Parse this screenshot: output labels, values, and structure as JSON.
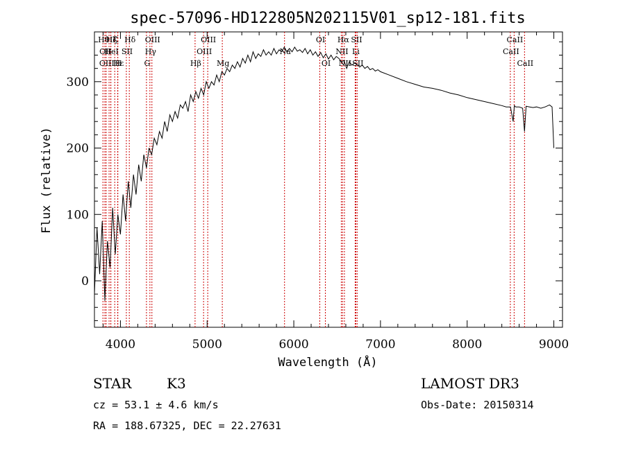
{
  "chart_data": {
    "type": "line",
    "title": "spec-57096-HD122805N202115V01_sp12-181.fits",
    "xlabel": "Wavelength (Å)",
    "ylabel": "Flux (relative)",
    "xlim": [
      3700,
      9100
    ],
    "ylim": [
      -70,
      375
    ],
    "x_ticks": [
      4000,
      5000,
      6000,
      7000,
      8000,
      9000
    ],
    "x_tick_labels": [
      "4000",
      "5000",
      "6000",
      "7000",
      "8000",
      "9000"
    ],
    "y_ticks": [
      0,
      100,
      200,
      300
    ],
    "y_tick_labels": [
      "0",
      "100",
      "200",
      "300"
    ],
    "series": [
      {
        "name": "spectrum",
        "color": "#000000",
        "x": [
          3700,
          3730,
          3760,
          3790,
          3820,
          3850,
          3880,
          3910,
          3940,
          3970,
          4000,
          4030,
          4060,
          4090,
          4120,
          4150,
          4180,
          4210,
          4240,
          4270,
          4300,
          4330,
          4360,
          4390,
          4420,
          4450,
          4480,
          4510,
          4540,
          4570,
          4600,
          4630,
          4660,
          4690,
          4720,
          4750,
          4780,
          4810,
          4840,
          4870,
          4900,
          4930,
          4960,
          4990,
          5020,
          5050,
          5080,
          5110,
          5140,
          5170,
          5200,
          5230,
          5260,
          5290,
          5320,
          5350,
          5380,
          5410,
          5440,
          5470,
          5500,
          5530,
          5560,
          5590,
          5620,
          5650,
          5680,
          5710,
          5740,
          5770,
          5800,
          5830,
          5860,
          5890,
          5920,
          5950,
          5980,
          6010,
          6040,
          6070,
          6100,
          6130,
          6160,
          6190,
          6220,
          6250,
          6280,
          6310,
          6340,
          6370,
          6400,
          6430,
          6460,
          6490,
          6520,
          6550,
          6580,
          6610,
          6640,
          6670,
          6700,
          6730,
          6760,
          6790,
          6820,
          6850,
          6880,
          6910,
          6940,
          6970,
          7000,
          7100,
          7200,
          7300,
          7400,
          7500,
          7600,
          7700,
          7800,
          7900,
          8000,
          8100,
          8200,
          8300,
          8400,
          8450,
          8500,
          8530,
          8545,
          8560,
          8600,
          8640,
          8662,
          8680,
          8720,
          8760,
          8800,
          8850,
          8900,
          8950,
          8980,
          9000
        ],
        "y": [
          -20,
          80,
          10,
          90,
          -30,
          60,
          20,
          110,
          40,
          100,
          70,
          130,
          90,
          150,
          110,
          160,
          130,
          175,
          150,
          190,
          170,
          200,
          190,
          215,
          205,
          225,
          215,
          240,
          225,
          250,
          240,
          255,
          245,
          265,
          260,
          270,
          255,
          280,
          270,
          285,
          275,
          290,
          280,
          300,
          290,
          300,
          295,
          310,
          300,
          315,
          310,
          320,
          315,
          325,
          320,
          330,
          322,
          335,
          328,
          340,
          330,
          345,
          335,
          342,
          338,
          348,
          340,
          345,
          340,
          350,
          342,
          348,
          345,
          352,
          345,
          350,
          345,
          352,
          346,
          348,
          344,
          350,
          342,
          348,
          340,
          345,
          338,
          344,
          336,
          342,
          334,
          340,
          333,
          338,
          335,
          330,
          332,
          320,
          330,
          325,
          328,
          326,
          322,
          325,
          320,
          323,
          318,
          320,
          316,
          318,
          315,
          310,
          305,
          300,
          296,
          292,
          290,
          287,
          283,
          280,
          276,
          273,
          270,
          267,
          264,
          262,
          262,
          240,
          264,
          262,
          262,
          260,
          225,
          263,
          262,
          261,
          262,
          260,
          262,
          265,
          262,
          200
        ]
      }
    ],
    "lines": [
      {
        "wavelength": 3798,
        "label": "Hθ",
        "row": 1
      },
      {
        "wavelength": 3820,
        "label": "OII",
        "row": 2
      },
      {
        "wavelength": 3835,
        "label": "OIII",
        "row": 3
      },
      {
        "wavelength": 3869,
        "label": "",
        "row": 0
      },
      {
        "wavelength": 3889,
        "label": "Hζ",
        "row": 1
      },
      {
        "wavelength": 3889,
        "label": "HeI",
        "row": 2
      },
      {
        "wavelength": 3934,
        "label": "K",
        "row": 1
      },
      {
        "wavelength": 3970,
        "label": "Hε",
        "row": 3
      },
      {
        "wavelength": 3968,
        "label": "H",
        "row": 3
      },
      {
        "wavelength": 4068,
        "label": "SII",
        "row": 2
      },
      {
        "wavelength": 4102,
        "label": "Hδ",
        "row": 1
      },
      {
        "wavelength": 4300,
        "label": "G",
        "row": 3
      },
      {
        "wavelength": 4340,
        "label": "Hγ",
        "row": 2
      },
      {
        "wavelength": 4363,
        "label": "OIII",
        "row": 1
      },
      {
        "wavelength": 4861,
        "label": "Hβ",
        "row": 3
      },
      {
        "wavelength": 4959,
        "label": "OIII",
        "row": 2
      },
      {
        "wavelength": 5007,
        "label": "OIII",
        "row": 1
      },
      {
        "wavelength": 5175,
        "label": "Mg",
        "row": 3
      },
      {
        "wavelength": 5893,
        "label": "Na",
        "row": 2
      },
      {
        "wavelength": 6300,
        "label": "OI",
        "row": 1
      },
      {
        "wavelength": 6364,
        "label": "OI",
        "row": 3
      },
      {
        "wavelength": 6548,
        "label": "NII",
        "row": 2
      },
      {
        "wavelength": 6563,
        "label": "Hα",
        "row": 1
      },
      {
        "wavelength": 6584,
        "label": "NII",
        "row": 3
      },
      {
        "wavelength": 6708,
        "label": "Li",
        "row": 2
      },
      {
        "wavelength": 6716,
        "label": "SII",
        "row": 1
      },
      {
        "wavelength": 6731,
        "label": "SII",
        "row": 3
      },
      {
        "wavelength": 8498,
        "label": "CaII",
        "row": 2
      },
      {
        "wavelength": 8542,
        "label": "CaII",
        "row": 1
      },
      {
        "wavelength": 8662,
        "label": "CaII",
        "row": 3
      }
    ],
    "line_color": "#cc0000"
  },
  "info": {
    "class": "STAR",
    "subclass": "K3",
    "survey": "LAMOST DR3",
    "cz": "cz = 53.1 ± 4.6 km/s",
    "obs_date": "Obs-Date: 20150314",
    "coords": "RA = 188.67325, DEC =  22.27631"
  }
}
